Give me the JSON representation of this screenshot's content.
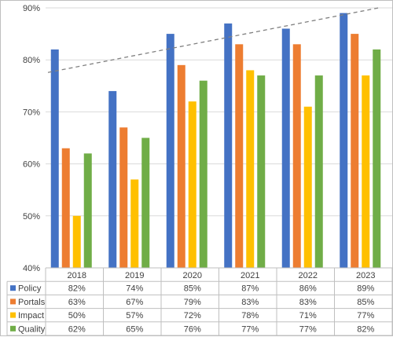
{
  "chart_data": {
    "type": "bar",
    "categories": [
      "2018",
      "2019",
      "2020",
      "2021",
      "2022",
      "2023"
    ],
    "series": [
      {
        "name": "Policy",
        "color": "#4472c4",
        "values": [
          82,
          74,
          85,
          87,
          86,
          89
        ],
        "labels": [
          "82%",
          "74%",
          "85%",
          "87%",
          "86%",
          "89%"
        ]
      },
      {
        "name": "Portals",
        "color": "#ed7d31",
        "values": [
          63,
          67,
          79,
          83,
          83,
          85
        ],
        "labels": [
          "63%",
          "67%",
          "79%",
          "83%",
          "83%",
          "85%"
        ]
      },
      {
        "name": "Impact",
        "color": "#ffc000",
        "values": [
          50,
          57,
          72,
          78,
          71,
          77
        ],
        "labels": [
          "50%",
          "57%",
          "72%",
          "78%",
          "71%",
          "77%"
        ]
      },
      {
        "name": "Quality",
        "color": "#70ad47",
        "values": [
          62,
          65,
          76,
          77,
          77,
          82
        ],
        "labels": [
          "62%",
          "65%",
          "76%",
          "77%",
          "77%",
          "82%"
        ]
      }
    ],
    "yticks": [
      "40%",
      "50%",
      "60%",
      "70%",
      "80%",
      "90%"
    ],
    "ylim": [
      40,
      90
    ],
    "trendline": {
      "type": "linear",
      "style": "dashed",
      "color": "#808080"
    },
    "grid": true,
    "data_table": true
  }
}
